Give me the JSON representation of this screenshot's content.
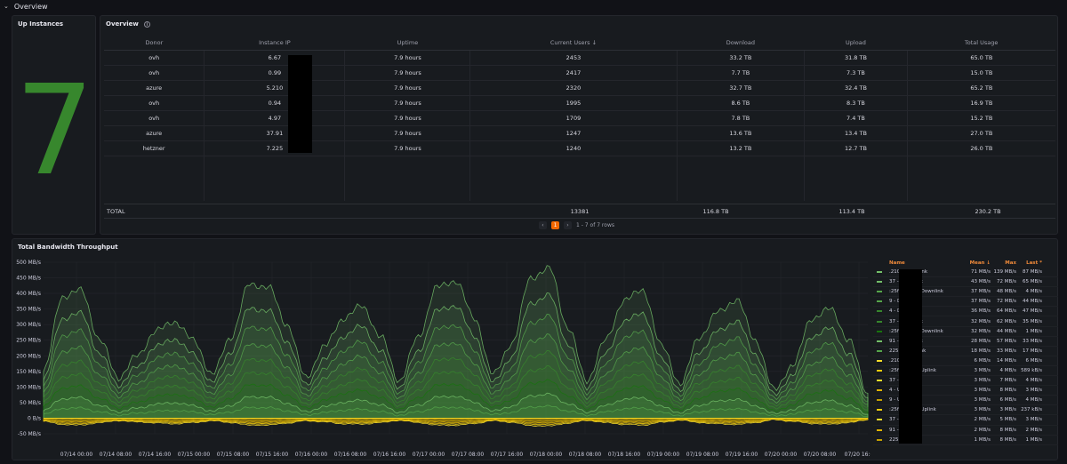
{
  "row": {
    "title": "Overview"
  },
  "up_instances": {
    "title": "Up Instances",
    "value": "7",
    "color": "#37872d"
  },
  "overview": {
    "title": "Overview",
    "columns": [
      "Donor",
      "Instance IP",
      "Uptime",
      "Current Users ↓",
      "Download",
      "Upload",
      "Total Usage"
    ],
    "rows": [
      [
        "ovh",
        "6.67",
        "7.9 hours",
        "2453",
        "33.2 TB",
        "31.8 TB",
        "65.0 TB"
      ],
      [
        "ovh",
        "0.99",
        "7.9 hours",
        "2417",
        "7.7 TB",
        "7.3 TB",
        "15.0 TB"
      ],
      [
        "azure",
        "5.210",
        "7.9 hours",
        "2320",
        "32.7 TB",
        "32.4 TB",
        "65.2 TB"
      ],
      [
        "ovh",
        "0.94",
        "7.9 hours",
        "1995",
        "8.6 TB",
        "8.3 TB",
        "16.9 TB"
      ],
      [
        "ovh",
        "4.97",
        "7.9 hours",
        "1709",
        "7.8 TB",
        "7.4 TB",
        "15.2 TB"
      ],
      [
        "azure",
        "37.91",
        "7.9 hours",
        "1247",
        "13.6 TB",
        "13.4 TB",
        "27.0 TB"
      ],
      [
        "hetzner",
        "7.225",
        "7.9 hours",
        "1240",
        "13.2 TB",
        "12.7 TB",
        "26.0 TB"
      ]
    ],
    "total": {
      "label": "TOTAL",
      "users": "13381",
      "download": "116.8 TB",
      "upload": "113.4 TB",
      "usage": "230.2 TB"
    },
    "pager": {
      "prev": "‹",
      "current": "1",
      "next": "›",
      "info": "1 - 7 of 7 rows"
    }
  },
  "bandwidth": {
    "title": "Total Bandwidth Throughput",
    "legend_headers": {
      "name": "Name",
      "mean": "Mean ↓",
      "max": "Max",
      "last": "Last *"
    },
    "legend": [
      {
        "name": ".210 - Downlink",
        "mean": "71 MB/s",
        "max": "139 MB/s",
        "last": "87 MB/s",
        "color": "#73bf69"
      },
      {
        "name": "37 - Downlink",
        "mean": "43 MB/s",
        "max": "72 MB/s",
        "last": "65 MB/s",
        "color": "#73bf69"
      },
      {
        "name": ":25f:6300:: - Downlink",
        "mean": "37 MB/s",
        "max": "48 MB/s",
        "last": "4 MB/s",
        "color": "#56a64b"
      },
      {
        "name": "9 - Downlink",
        "mean": "37 MB/s",
        "max": "72 MB/s",
        "last": "44 MB/s",
        "color": "#56a64b"
      },
      {
        "name": "4 - Downlink",
        "mean": "36 MB/s",
        "max": "64 MB/s",
        "last": "47 MB/s",
        "color": "#37872d"
      },
      {
        "name": "37 - Downlink",
        "mean": "32 MB/s",
        "max": "62 MB/s",
        "last": "35 MB/s",
        "color": "#37872d"
      },
      {
        "name": ":25f:5e00:: - Downlink",
        "mean": "32 MB/s",
        "max": "44 MB/s",
        "last": "1 MB/s",
        "color": "#19730e"
      },
      {
        "name": "91 - Downlink",
        "mean": "28 MB/s",
        "max": "57 MB/s",
        "last": "33 MB/s",
        "color": "#73bf69"
      },
      {
        "name": "225 - Downlink",
        "mean": "18 MB/s",
        "max": "33 MB/s",
        "last": "17 MB/s",
        "color": "#56a64b"
      },
      {
        "name": ".210 - Uplink",
        "mean": "6 MB/s",
        "max": "14 MB/s",
        "last": "6 MB/s",
        "color": "#fade2a"
      },
      {
        "name": ":25f:6300:: - Uplink",
        "mean": "3 MB/s",
        "max": "4 MB/s",
        "last": "589 kB/s",
        "color": "#f2cc0c"
      },
      {
        "name": "37 - Uplink",
        "mean": "3 MB/s",
        "max": "7 MB/s",
        "last": "4 MB/s",
        "color": "#fade2a"
      },
      {
        "name": "4 - Uplink",
        "mean": "3 MB/s",
        "max": "8 MB/s",
        "last": "3 MB/s",
        "color": "#e0b400"
      },
      {
        "name": "9 - Uplink",
        "mean": "3 MB/s",
        "max": "6 MB/s",
        "last": "4 MB/s",
        "color": "#c4a000"
      },
      {
        "name": ":25f:5e00:: - Uplink",
        "mean": "3 MB/s",
        "max": "3 MB/s",
        "last": "237 kB/s",
        "color": "#f2cc0c"
      },
      {
        "name": "37 - Uplink",
        "mean": "2 MB/s",
        "max": "5 MB/s",
        "last": "3 MB/s",
        "color": "#fade2a"
      },
      {
        "name": "91 - Uplink",
        "mean": "2 MB/s",
        "max": "8 MB/s",
        "last": "2 MB/s",
        "color": "#e0b400"
      },
      {
        "name": "225 - Uplink",
        "mean": "1 MB/s",
        "max": "8 MB/s",
        "last": "1 MB/s",
        "color": "#c4a000"
      }
    ]
  },
  "chart_data": {
    "type": "area",
    "title": "Total Bandwidth Throughput",
    "y_ticks": [
      "500 MB/s",
      "450 MB/s",
      "400 MB/s",
      "350 MB/s",
      "300 MB/s",
      "250 MB/s",
      "200 MB/s",
      "150 MB/s",
      "100 MB/s",
      "50 MB/s",
      "0 B/s",
      "-50 MB/s"
    ],
    "ylim": [
      -50,
      500
    ],
    "x_ticks": [
      "07/14 00:00",
      "07/14 08:00",
      "07/14 16:00",
      "07/15 00:00",
      "07/15 08:00",
      "07/15 16:00",
      "07/16 00:00",
      "07/16 08:00",
      "07/16 16:00",
      "07/17 00:00",
      "07/17 08:00",
      "07/17 16:00",
      "07/18 00:00",
      "07/18 08:00",
      "07/18 16:00",
      "07/19 00:00",
      "07/19 08:00",
      "07/19 16:00",
      "07/20 00:00",
      "07/20 08:00",
      "07/20 16:0"
    ],
    "series": [
      {
        "name": "Stacked downlink total",
        "values": [
          150,
          390,
          410,
          250,
          130,
          200,
          280,
          310,
          250,
          140,
          260,
          430,
          420,
          300,
          130,
          230,
          320,
          360,
          260,
          120,
          260,
          420,
          440,
          320,
          140,
          240,
          450,
          480,
          290,
          120,
          250,
          380,
          410,
          230,
          110,
          260,
          340,
          380,
          250,
          90,
          170,
          320,
          350,
          250,
          80
        ]
      },
      {
        "name": "Stacked uplink total",
        "values": [
          -10,
          -20,
          -22,
          -14,
          -8,
          -12,
          -15,
          -18,
          -14,
          -8,
          -14,
          -22,
          -22,
          -16,
          -8,
          -12,
          -18,
          -19,
          -14,
          -7,
          -14,
          -22,
          -23,
          -17,
          -8,
          -13,
          -24,
          -25,
          -16,
          -7,
          -14,
          -20,
          -22,
          -13,
          -6,
          -14,
          -18,
          -20,
          -14,
          -5,
          -10,
          -17,
          -19,
          -14,
          -5
        ]
      }
    ]
  }
}
